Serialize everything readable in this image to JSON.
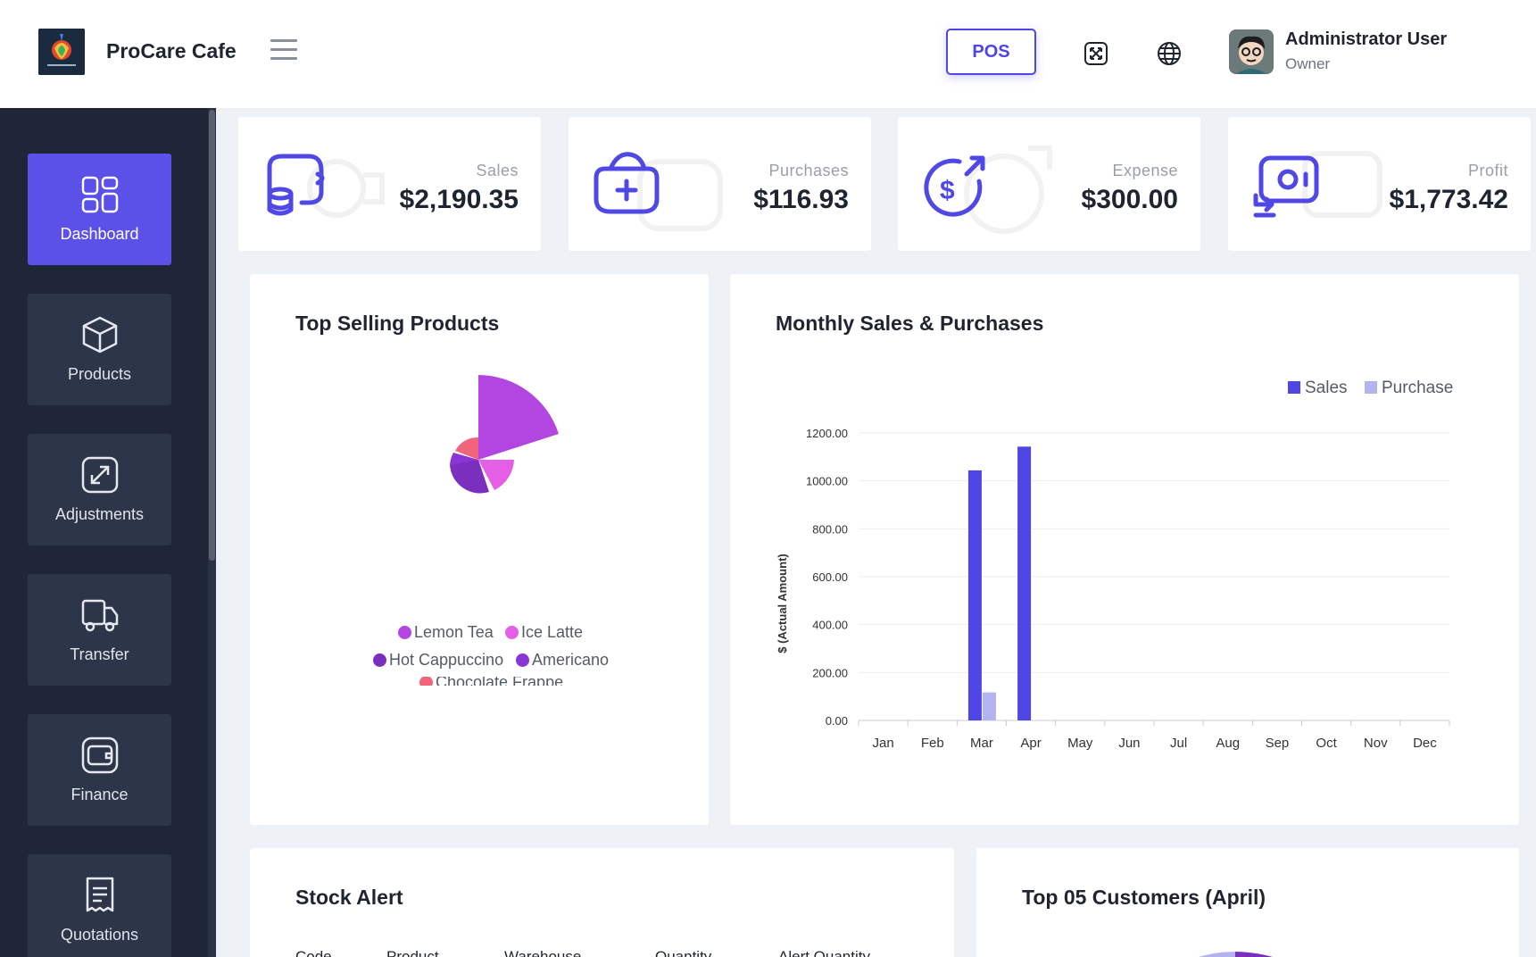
{
  "header": {
    "app_name": "ProCare Cafe",
    "logo_icon": "procare-logo",
    "pos_label": "POS",
    "user": {
      "name": "Administrator User",
      "role": "Owner"
    }
  },
  "sidebar": {
    "items": [
      {
        "label": "Dashboard",
        "icon": "dashboard-icon",
        "active": true
      },
      {
        "label": "Products",
        "icon": "cube-icon"
      },
      {
        "label": "Adjustments",
        "icon": "adjust-icon"
      },
      {
        "label": "Transfer",
        "icon": "truck-icon"
      },
      {
        "label": "Finance",
        "icon": "wallet-icon"
      },
      {
        "label": "Quotations",
        "icon": "receipt-icon"
      }
    ]
  },
  "stats": [
    {
      "label": "Sales",
      "value": "$2,190.35"
    },
    {
      "label": "Purchases",
      "value": "$116.93"
    },
    {
      "label": "Expense",
      "value": "$300.00"
    },
    {
      "label": "Profit",
      "value": "$1,773.42"
    }
  ],
  "colors": {
    "accent": "#4f46e5",
    "sidebar": "#1f2638",
    "active": "#5b50e8",
    "purchase": "#b4b3f0"
  },
  "top_selling": {
    "title": "Top Selling Products",
    "legend": [
      {
        "label": "Lemon Tea",
        "color": "#b346e0"
      },
      {
        "label": "Ice Latte",
        "color": "#e45fe6"
      },
      {
        "label": "Hot Cappuccino",
        "color": "#7b2fbe"
      },
      {
        "label": "Americano",
        "color": "#8a35d6"
      },
      {
        "label": "Chocolate Frappe",
        "color": "#f0647c"
      }
    ]
  },
  "monthly": {
    "title": "Monthly Sales & Purchases",
    "legend": [
      {
        "label": "Sales",
        "color": "#4f46e5"
      },
      {
        "label": "Purchase",
        "color": "#b4b3f0"
      }
    ]
  },
  "stock_alert": {
    "title": "Stock Alert",
    "columns": [
      "Code",
      "Product",
      "Warehouse",
      "Quantity",
      "Alert Quantity"
    ]
  },
  "top_customers": {
    "title": "Top 05 Customers (April)"
  },
  "chart_data": [
    {
      "type": "pie",
      "title": "Top Selling Products",
      "labels": [
        "Lemon Tea",
        "Ice Latte",
        "Hot Cappuccino",
        "Americano",
        "Chocolate Frappe"
      ],
      "values": [
        5,
        2,
        1,
        1,
        1
      ]
    },
    {
      "type": "bar",
      "title": "Monthly Sales & Purchases",
      "categories": [
        "Jan",
        "Feb",
        "Mar",
        "Apr",
        "May",
        "Jun",
        "Jul",
        "Aug",
        "Sep",
        "Oct",
        "Nov",
        "Dec"
      ],
      "series": [
        {
          "name": "Sales",
          "values": [
            0,
            0,
            1044,
            1143,
            0,
            0,
            0,
            0,
            0,
            0,
            0,
            0
          ]
        },
        {
          "name": "Purchase",
          "values": [
            0,
            0,
            117,
            0,
            0,
            0,
            0,
            0,
            0,
            0,
            0,
            0
          ]
        }
      ],
      "ylabel": "$ (Actual Amount)",
      "yticks": [
        "0.00",
        "200.00",
        "400.00",
        "600.00",
        "800.00",
        "1000.00",
        "1200.00"
      ],
      "ylim": [
        0,
        1200
      ],
      "legend": "top-right",
      "grid": true
    }
  ]
}
